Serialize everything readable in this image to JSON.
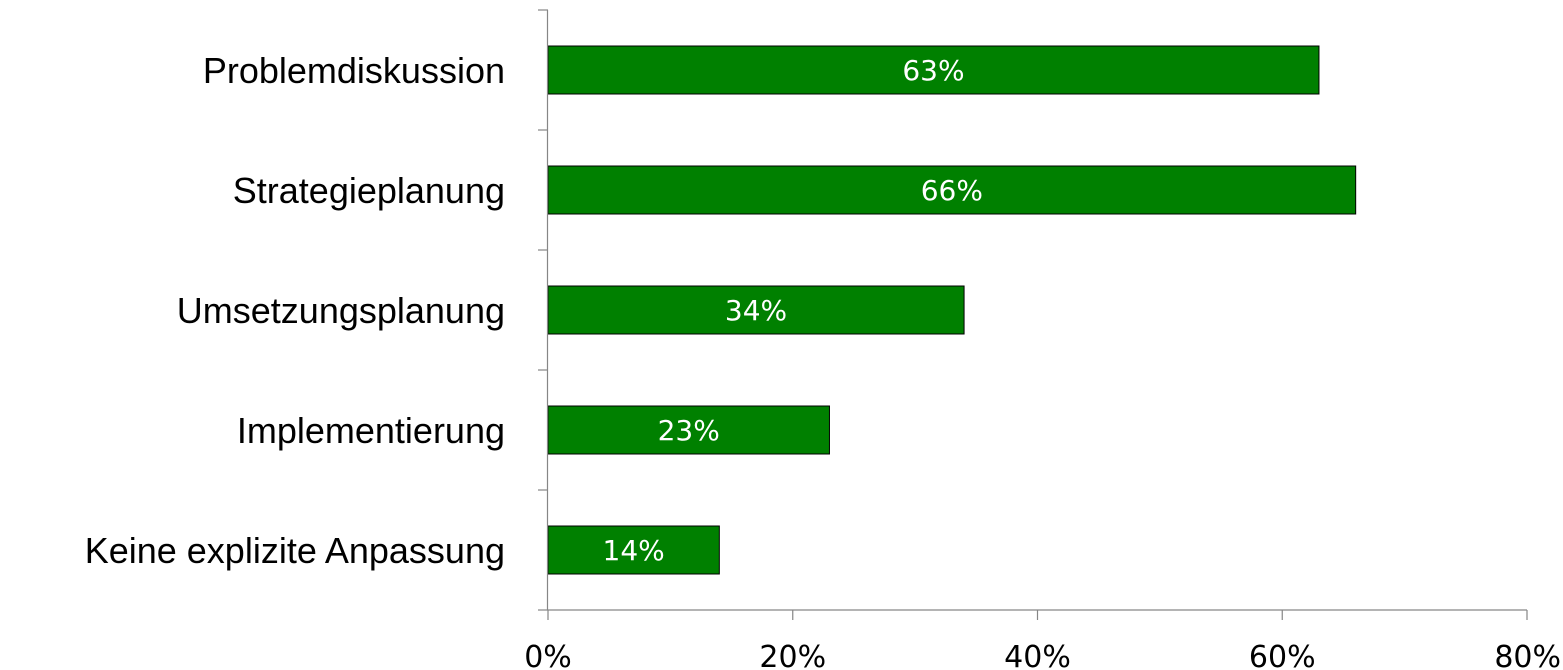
{
  "chart_data": {
    "type": "bar",
    "orientation": "horizontal",
    "categories": [
      "Problemdiskussion",
      "Strategieplanung",
      "Umsetzungsplanung",
      "Implementierung",
      "Keine explizite Anpassung"
    ],
    "values": [
      63,
      66,
      34,
      23,
      14
    ],
    "data_labels": [
      "63%",
      "66%",
      "34%",
      "23%",
      "14%"
    ],
    "title": "",
    "xlabel": "",
    "ylabel": "",
    "xlim": [
      0,
      80
    ],
    "x_ticks": [
      0,
      20,
      40,
      60,
      80
    ],
    "x_tick_labels": [
      "0%",
      "20%",
      "40%",
      "60%",
      "80%"
    ],
    "grid": false,
    "legend": "none",
    "colors": {
      "bar_fill": "#008000",
      "bar_stroke": "#000000",
      "axis": "#868686",
      "data_label": "#ffffff",
      "text": "#000000"
    }
  }
}
